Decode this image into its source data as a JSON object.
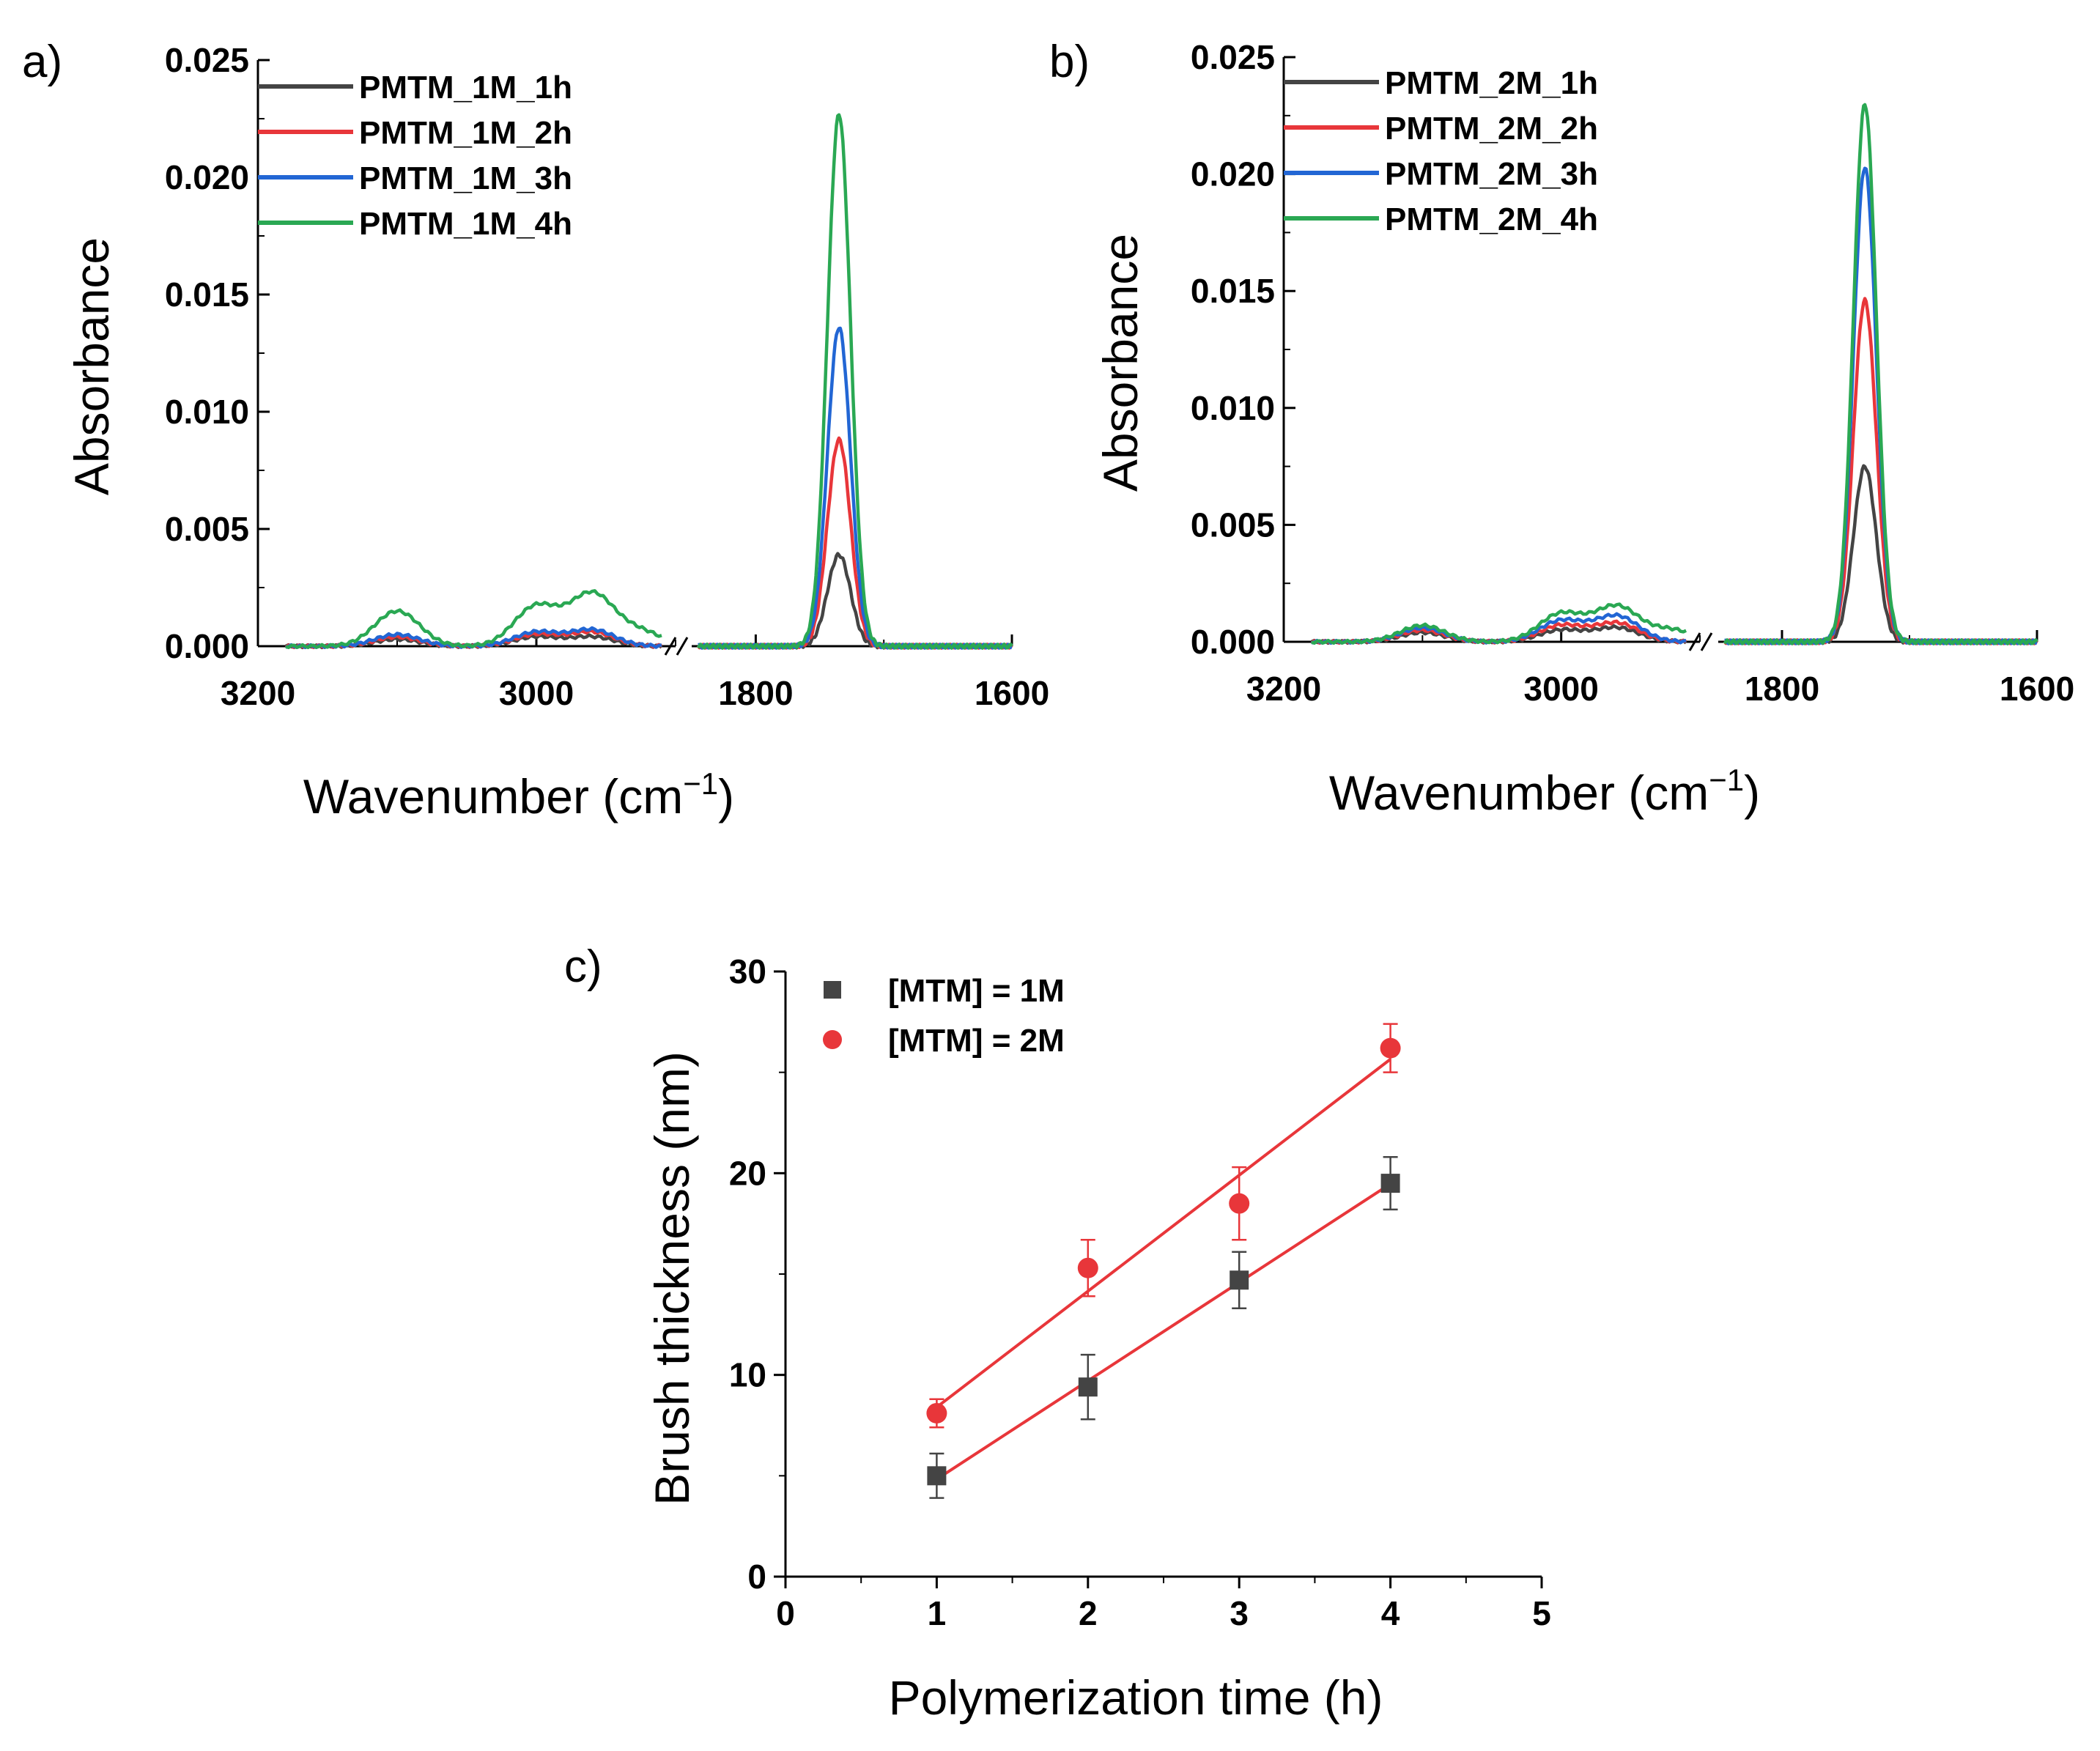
{
  "chart_data": [
    {
      "panel": "a)",
      "type": "line",
      "xlabel": "Wavenumber (cm",
      "xlabel_sup": "−1",
      "xlabel_end": ")",
      "ylabel": "Absorbance",
      "ylim": [
        0,
        0.025
      ],
      "yticks": [
        "0.000",
        "0.005",
        "0.010",
        "0.015",
        "0.020",
        "0.025"
      ],
      "broken_x_axis": true,
      "x_segments": [
        [
          3200,
          2900
        ],
        [
          1850,
          1600
        ]
      ],
      "xticks": [
        "3200",
        "3000",
        "1800",
        "1600"
      ],
      "series": [
        {
          "name": "PMTM_1M_1h",
          "color": "#444444",
          "peaks": [
            {
              "x": 3100,
              "h": 0.0003
            },
            {
              "x": 3000,
              "h": 0.0004
            },
            {
              "x": 2960,
              "h": 0.0004
            },
            {
              "x": 1735,
              "h": 0.0039
            }
          ]
        },
        {
          "name": "PMTM_1M_2h",
          "color": "#e8363a",
          "peaks": [
            {
              "x": 3100,
              "h": 0.0004
            },
            {
              "x": 3000,
              "h": 0.0005
            },
            {
              "x": 2960,
              "h": 0.0006
            },
            {
              "x": 1735,
              "h": 0.0088
            }
          ]
        },
        {
          "name": "PMTM_1M_3h",
          "color": "#2266d4",
          "peaks": [
            {
              "x": 3100,
              "h": 0.0005
            },
            {
              "x": 3000,
              "h": 0.0006
            },
            {
              "x": 2960,
              "h": 0.0007
            },
            {
              "x": 1735,
              "h": 0.0136
            }
          ]
        },
        {
          "name": "PMTM_1M_4h",
          "color": "#2aa853",
          "peaks": [
            {
              "x": 3100,
              "h": 0.0015
            },
            {
              "x": 3000,
              "h": 0.0017
            },
            {
              "x": 2960,
              "h": 0.0022
            },
            {
              "x": 2925,
              "h": 0.0006
            },
            {
              "x": 1735,
              "h": 0.0227
            }
          ]
        }
      ]
    },
    {
      "panel": "b)",
      "type": "line",
      "xlabel": "Wavenumber (cm",
      "xlabel_sup": "−1",
      "xlabel_end": ")",
      "ylabel": "Absorbance",
      "ylim": [
        0,
        0.025
      ],
      "yticks": [
        "0.000",
        "0.005",
        "0.010",
        "0.015",
        "0.020",
        "0.025"
      ],
      "broken_x_axis": true,
      "x_segments": [
        [
          3200,
          2900
        ],
        [
          1850,
          1600
        ]
      ],
      "xticks": [
        "3200",
        "3000",
        "1800",
        "1600"
      ],
      "series": [
        {
          "name": "PMTM_2M_1h",
          "color": "#444444",
          "peaks": [
            {
              "x": 3100,
              "h": 0.0004
            },
            {
              "x": 3000,
              "h": 0.0005
            },
            {
              "x": 2960,
              "h": 0.0006
            },
            {
              "x": 1735,
              "h": 0.0075
            }
          ]
        },
        {
          "name": "PMTM_2M_2h",
          "color": "#e8363a",
          "peaks": [
            {
              "x": 3100,
              "h": 0.0005
            },
            {
              "x": 3000,
              "h": 0.0007
            },
            {
              "x": 2960,
              "h": 0.0008
            },
            {
              "x": 1735,
              "h": 0.0146
            }
          ]
        },
        {
          "name": "PMTM_2M_3h",
          "color": "#2266d4",
          "peaks": [
            {
              "x": 3100,
              "h": 0.0006
            },
            {
              "x": 3000,
              "h": 0.0009
            },
            {
              "x": 2960,
              "h": 0.0011
            },
            {
              "x": 1735,
              "h": 0.0203
            }
          ]
        },
        {
          "name": "PMTM_2M_4h",
          "color": "#2aa853",
          "peaks": [
            {
              "x": 3100,
              "h": 0.0007
            },
            {
              "x": 3000,
              "h": 0.0012
            },
            {
              "x": 2960,
              "h": 0.0015
            },
            {
              "x": 2920,
              "h": 0.0005
            },
            {
              "x": 1735,
              "h": 0.023
            }
          ]
        }
      ]
    },
    {
      "panel": "c)",
      "type": "scatter",
      "xlabel": "Polymerization time (h)",
      "ylabel": "Brush thickness (nm)",
      "xlim": [
        0,
        5
      ],
      "ylim": [
        0,
        30
      ],
      "xticks": [
        "0",
        "1",
        "2",
        "3",
        "4",
        "5"
      ],
      "yticks": [
        "0",
        "10",
        "20",
        "30"
      ],
      "series": [
        {
          "name": "[MTM] = 1M",
          "marker": "square",
          "color": "#444444",
          "fit_color": "#e8363a",
          "x": [
            1,
            2,
            3,
            4
          ],
          "y": [
            5.0,
            9.4,
            14.7,
            19.5
          ],
          "err": [
            1.1,
            1.6,
            1.4,
            1.3
          ]
        },
        {
          "name": "[MTM] = 2M",
          "marker": "circle",
          "color": "#e8363a",
          "fit_color": "#e8363a",
          "x": [
            1,
            2,
            3,
            4
          ],
          "y": [
            8.1,
            15.3,
            18.5,
            26.2
          ],
          "err": [
            0.7,
            1.4,
            1.8,
            1.2
          ]
        }
      ]
    }
  ]
}
